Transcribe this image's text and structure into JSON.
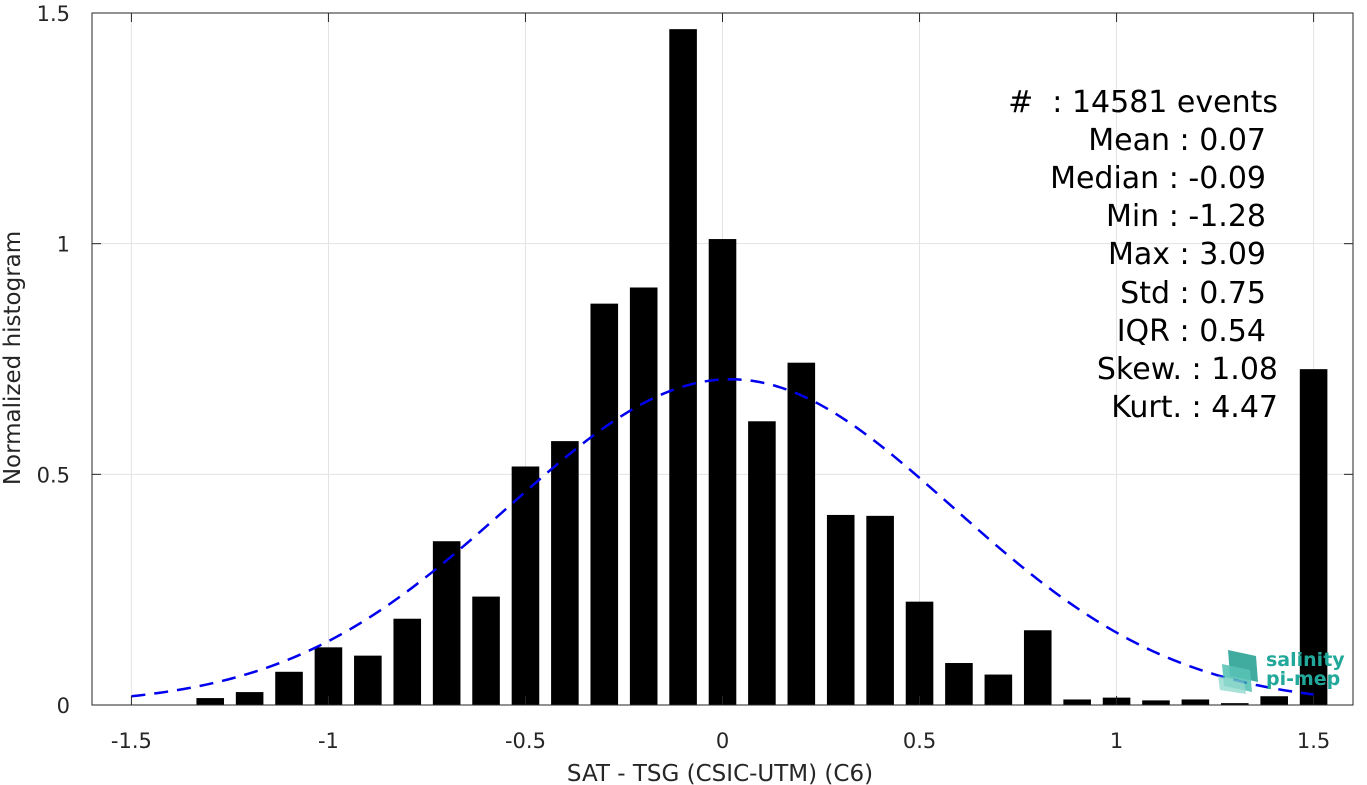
{
  "chart_data": {
    "type": "bar",
    "xlabel": "SAT - TSG (CSIC-UTM) (C6)",
    "ylabel": "Normalized histogram",
    "xlim": [
      -1.6,
      1.6
    ],
    "ylim": [
      0,
      1.5
    ],
    "xticks": [
      -1.5,
      -1,
      -0.5,
      0,
      0.5,
      1,
      1.5
    ],
    "yticks": [
      0,
      0.5,
      1,
      1.5
    ],
    "xtick_labels": [
      "-1.5",
      "-1",
      "-0.5",
      "0",
      "0.5",
      "1",
      "1.5"
    ],
    "ytick_labels": [
      "0",
      "0.5",
      "1",
      "1.5"
    ],
    "grid": true,
    "bar_width": 0.07,
    "bar_color": "#000000",
    "bins": [
      {
        "x": -1.3,
        "y": 0.015
      },
      {
        "x": -1.2,
        "y": 0.028
      },
      {
        "x": -1.1,
        "y": 0.072
      },
      {
        "x": -1.0,
        "y": 0.125
      },
      {
        "x": -0.9,
        "y": 0.107
      },
      {
        "x": -0.8,
        "y": 0.187
      },
      {
        "x": -0.7,
        "y": 0.355
      },
      {
        "x": -0.6,
        "y": 0.235
      },
      {
        "x": -0.5,
        "y": 0.517
      },
      {
        "x": -0.4,
        "y": 0.572
      },
      {
        "x": -0.3,
        "y": 0.87
      },
      {
        "x": -0.2,
        "y": 0.905
      },
      {
        "x": -0.1,
        "y": 1.465
      },
      {
        "x": 0.0,
        "y": 1.01
      },
      {
        "x": 0.1,
        "y": 0.615
      },
      {
        "x": 0.2,
        "y": 0.742
      },
      {
        "x": 0.3,
        "y": 0.412
      },
      {
        "x": 0.4,
        "y": 0.41
      },
      {
        "x": 0.5,
        "y": 0.224
      },
      {
        "x": 0.6,
        "y": 0.091
      },
      {
        "x": 0.7,
        "y": 0.066
      },
      {
        "x": 0.8,
        "y": 0.162
      },
      {
        "x": 0.9,
        "y": 0.012
      },
      {
        "x": 1.0,
        "y": 0.016
      },
      {
        "x": 1.1,
        "y": 0.01
      },
      {
        "x": 1.2,
        "y": 0.012
      },
      {
        "x": 1.3,
        "y": 0.004
      },
      {
        "x": 1.4,
        "y": 0.019
      },
      {
        "x": 1.5,
        "y": 0.728
      }
    ],
    "fit": {
      "type": "normal",
      "style": "dashed",
      "color": "#0000ee",
      "mean": 0.02,
      "std": 0.565,
      "x_range": [
        -1.5,
        1.5
      ]
    },
    "annotations": [
      "#  : 14581 events",
      "Mean : 0.07",
      "Median : -0.09",
      "Min : -1.28",
      "Max : 3.09",
      "Std : 0.75",
      "IQR : 0.54",
      "Skew. : 1.08",
      "Kurt. : 4.47"
    ]
  },
  "logo": {
    "line1": "salinity",
    "line2": "pi-mep",
    "color": "#22a89a"
  }
}
